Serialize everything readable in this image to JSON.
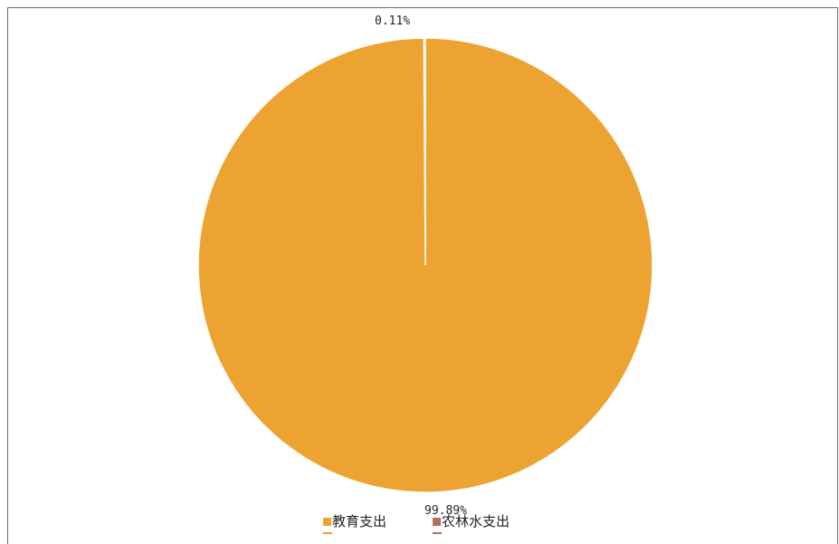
{
  "chart_data": {
    "type": "pie",
    "slices": [
      {
        "name": "教育支出",
        "value": 99.89,
        "label": "99.89%",
        "color": "#EDA331"
      },
      {
        "name": "农林水支出",
        "value": 0.11,
        "label": "0.11%",
        "color": "#B0705C"
      }
    ],
    "legend_position": "bottom"
  },
  "legend": {
    "items": [
      {
        "label": "教育支出",
        "color": "#EDA331"
      },
      {
        "label": "农林水支出",
        "color": "#B0705C"
      }
    ]
  }
}
